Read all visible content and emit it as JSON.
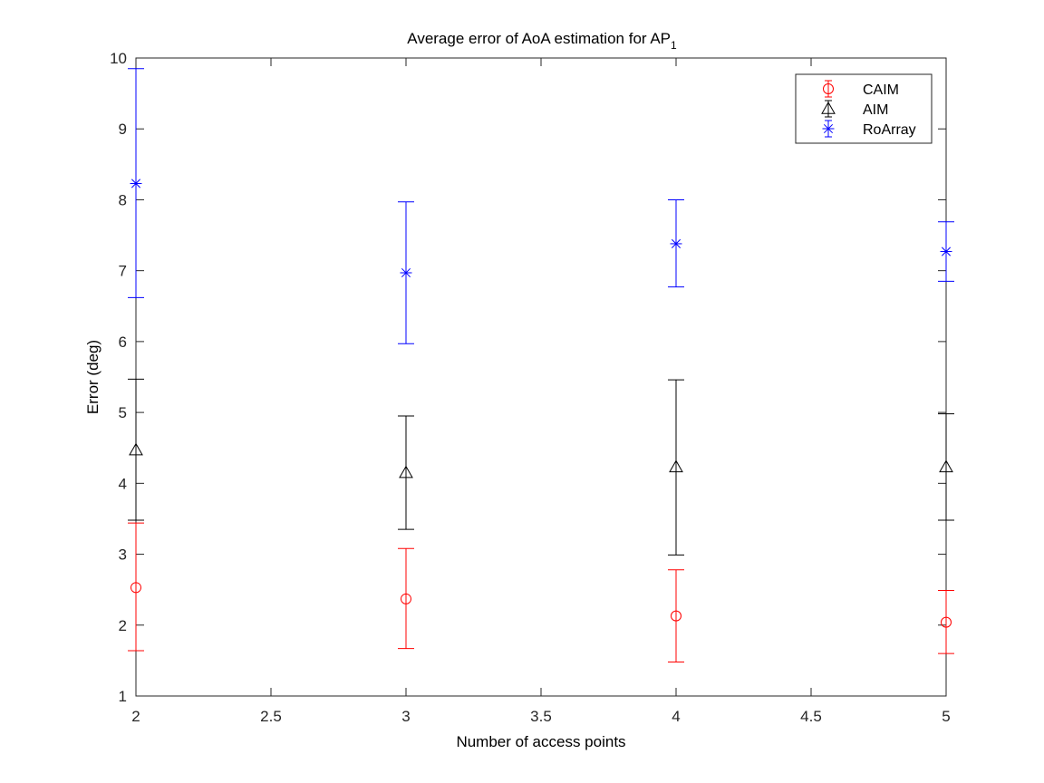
{
  "chart_data": {
    "type": "errorbar",
    "title": "Average error of AoA estimation for AP",
    "title_subscript": "1",
    "xlabel": "Number of access points",
    "ylabel": "Error (deg)",
    "xlim": [
      2,
      5
    ],
    "ylim": [
      1,
      10
    ],
    "xticks": [
      2,
      2.5,
      3,
      3.5,
      4,
      4.5,
      5
    ],
    "xtick_labels": [
      "2",
      "2.5",
      "3",
      "3.5",
      "4",
      "4.5",
      "5"
    ],
    "yticks": [
      1,
      2,
      3,
      4,
      5,
      6,
      7,
      8,
      9,
      10
    ],
    "ytick_labels": [
      "1",
      "2",
      "3",
      "4",
      "5",
      "6",
      "7",
      "8",
      "9",
      "10"
    ],
    "grid": false,
    "legend_position": "top-right",
    "x": [
      2,
      3,
      4,
      5
    ],
    "series": [
      {
        "name": "CAIM",
        "marker": "circle",
        "color": "#ff0000",
        "values": [
          2.53,
          2.37,
          2.13,
          2.04
        ],
        "lower": [
          1.64,
          1.67,
          1.48,
          1.6
        ],
        "upper": [
          3.44,
          3.08,
          2.78,
          2.49
        ]
      },
      {
        "name": "AIM",
        "marker": "triangle",
        "color": "#000000",
        "values": [
          4.47,
          4.15,
          4.23,
          4.23
        ],
        "lower": [
          3.48,
          3.35,
          2.99,
          3.48
        ],
        "upper": [
          5.47,
          4.95,
          5.46,
          4.98
        ]
      },
      {
        "name": "RoArray",
        "marker": "asterisk",
        "color": "#0000ff",
        "values": [
          8.23,
          6.97,
          7.38,
          7.27
        ],
        "lower": [
          6.62,
          5.97,
          6.77,
          6.85
        ],
        "upper": [
          9.85,
          7.97,
          8.0,
          7.69
        ]
      }
    ]
  }
}
